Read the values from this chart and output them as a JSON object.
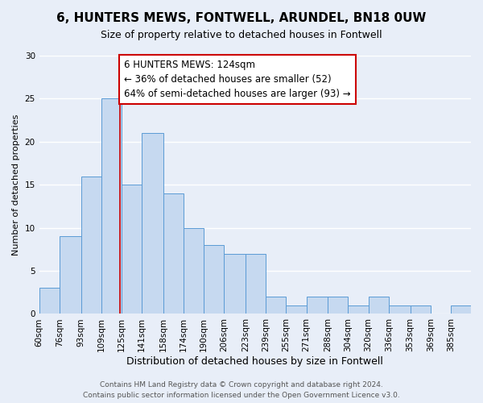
{
  "title": "6, HUNTERS MEWS, FONTWELL, ARUNDEL, BN18 0UW",
  "subtitle": "Size of property relative to detached houses in Fontwell",
  "xlabel": "Distribution of detached houses by size in Fontwell",
  "ylabel": "Number of detached properties",
  "bar_labels": [
    "60sqm",
    "76sqm",
    "93sqm",
    "109sqm",
    "125sqm",
    "141sqm",
    "158sqm",
    "174sqm",
    "190sqm",
    "206sqm",
    "223sqm",
    "239sqm",
    "255sqm",
    "271sqm",
    "288sqm",
    "304sqm",
    "320sqm",
    "336sqm",
    "353sqm",
    "369sqm",
    "385sqm"
  ],
  "bar_values": [
    3,
    9,
    16,
    25,
    15,
    21,
    14,
    10,
    8,
    7,
    7,
    2,
    1,
    2,
    2,
    1,
    2,
    1,
    1,
    0,
    1
  ],
  "bar_left_edges": [
    60,
    76,
    93,
    109,
    125,
    141,
    158,
    174,
    190,
    206,
    223,
    239,
    255,
    271,
    288,
    304,
    320,
    336,
    353,
    369,
    385
  ],
  "bar_widths": [
    16,
    17,
    16,
    16,
    16,
    17,
    16,
    16,
    16,
    17,
    16,
    16,
    16,
    17,
    16,
    16,
    16,
    17,
    16,
    16,
    16
  ],
  "bar_color": "#c6d9f0",
  "bar_edge_color": "#5b9bd5",
  "bg_color": "#e8eef8",
  "grid_color": "#ffffff",
  "property_line_x": 124,
  "property_line_color": "#cc0000",
  "annotation_text": "6 HUNTERS MEWS: 124sqm\n← 36% of detached houses are smaller (52)\n64% of semi-detached houses are larger (93) →",
  "annotation_box_color": "#ffffff",
  "annotation_box_edge": "#cc0000",
  "ylim": [
    0,
    30
  ],
  "yticks": [
    0,
    5,
    10,
    15,
    20,
    25,
    30
  ],
  "footer_line1": "Contains HM Land Registry data © Crown copyright and database right 2024.",
  "footer_line2": "Contains public sector information licensed under the Open Government Licence v3.0.",
  "title_fontsize": 11,
  "subtitle_fontsize": 9,
  "xlabel_fontsize": 9,
  "ylabel_fontsize": 8,
  "tick_fontsize": 7.5,
  "annotation_fontsize": 8.5,
  "footer_fontsize": 6.5
}
